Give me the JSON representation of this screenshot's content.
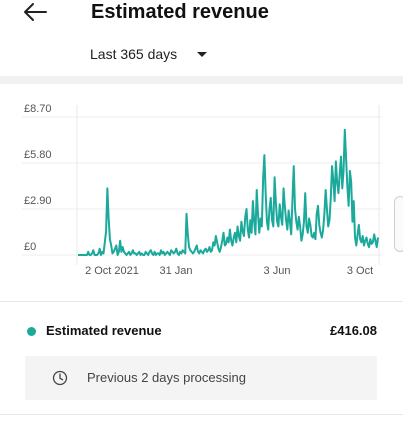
{
  "header": {
    "title": "Estimated revenue",
    "date_range": "Last 365 days"
  },
  "chart_data": {
    "type": "line",
    "color": "#1aa99b",
    "y_ticks": [
      "£8.70",
      "£5.80",
      "£2.90",
      "£0"
    ],
    "ylim": [
      0,
      8.7
    ],
    "x_ticks": [
      "2 Oct 2021",
      "31 Jan",
      "3 Jun",
      "3 Oct"
    ],
    "values": [
      0,
      0,
      0,
      0,
      0,
      0,
      0,
      0,
      0.2,
      0,
      0,
      0.1,
      0.3,
      0,
      0,
      0,
      0.1,
      0.4,
      0,
      0.2,
      0.1,
      0.8,
      1.5,
      4.2,
      2.3,
      1.0,
      0.6,
      0.1,
      0.2,
      0.4,
      0.6,
      0,
      0.2,
      0.9,
      0.2,
      0.5,
      0.2,
      0.1,
      0,
      0.1,
      0.2,
      0,
      0.1,
      0.3,
      0.1,
      0.1,
      0,
      0.1,
      0.2,
      0,
      0.1,
      0,
      0,
      0.2,
      0.1,
      0,
      0.2,
      0.3,
      0.1,
      0,
      0.2,
      0,
      0.1,
      0.1,
      0,
      0.3,
      0.1,
      0.2,
      0,
      0.1,
      0.2,
      0.1,
      0,
      0.3,
      0.2,
      0.1,
      0.2,
      0.4,
      0.1,
      0,
      0.2,
      0.1,
      0.3,
      0.2,
      0.1,
      2.6,
      1.3,
      0.5,
      0.3,
      0.2,
      0.1,
      0.2,
      0.4,
      0.6,
      0.2,
      0.1,
      0.3,
      0.2,
      0.1,
      0.3,
      0.4,
      0.2,
      0.3,
      0.5,
      0.2,
      0.3,
      0.8,
      0.6,
      1.2,
      0.8,
      0.4,
      0.2,
      0.5,
      0.9,
      1.4,
      0.6,
      0.7,
      1.1,
      0.8,
      1.6,
      0.9,
      0.6,
      1.1,
      1.4,
      0.8,
      1.8,
      1.2,
      0.9,
      2.1,
      1.5,
      1.2,
      2.4,
      2.9,
      1.6,
      1.1,
      2.2,
      1.4,
      3.4,
      2.1,
      1.3,
      4.1,
      2.6,
      1.4,
      2.3,
      1.8,
      4.8,
      6.3,
      3.9,
      2.1,
      1.6,
      2.9,
      3.6,
      2.2,
      1.8,
      4.9,
      3.3,
      2.1,
      1.8,
      3.2,
      2.4,
      1.9,
      4.2,
      3.1,
      2.2,
      1.6,
      2.8,
      2.1,
      1.3,
      3.5,
      5.6,
      2.9,
      2.1,
      1.6,
      2.4,
      1.8,
      0.9,
      1.3,
      2.1,
      3.9,
      1.8,
      1.4,
      2.3,
      1.9,
      1.2,
      1.1,
      1.4,
      1.0,
      2.6,
      3.1,
      1.9,
      1.4,
      1.1,
      1.6,
      2.6,
      4.1,
      2.9,
      1.8,
      2.2,
      3.6,
      5.6,
      4.7,
      3.4,
      5.9,
      4.6,
      3.9,
      5.1,
      6.2,
      4.2,
      5.3,
      7.9,
      6.1,
      4.3,
      3.1,
      5.3,
      4.6,
      2.1,
      3.4,
      1.1,
      0.6,
      1.3,
      1.9,
      1.0,
      0.8,
      1.2,
      0.6,
      0.9,
      1.1,
      0.7,
      0.5,
      1.0,
      0.7,
      0.8,
      1.3,
      0.9,
      0.5,
      1.1
    ]
  },
  "summary": {
    "label": "Estimated revenue",
    "value": "£416.08",
    "series_color": "#1aa99b"
  },
  "notice": {
    "text": "Previous 2 days processing"
  }
}
